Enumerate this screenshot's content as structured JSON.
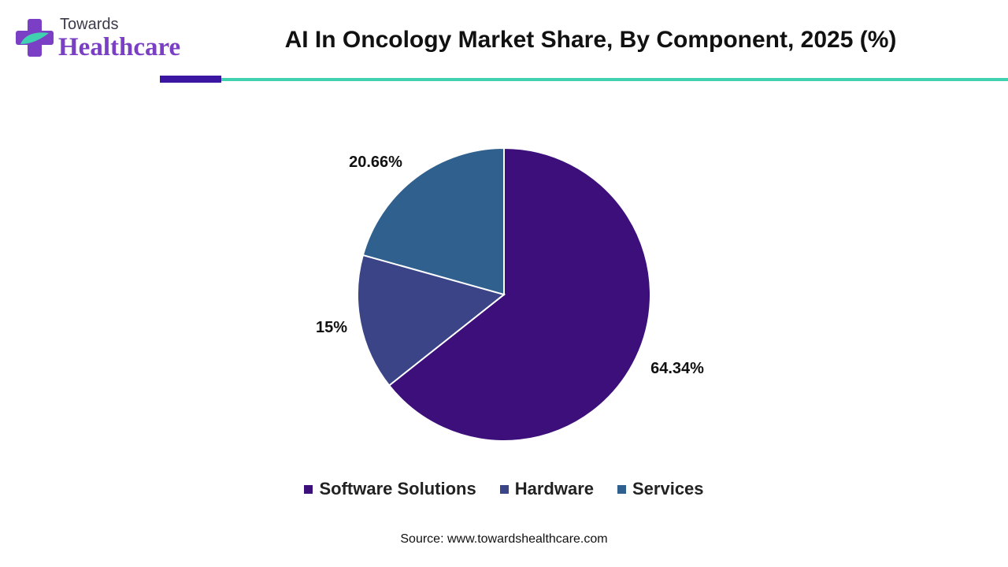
{
  "header": {
    "logo_line1": "Towards",
    "logo_line2": "Healthcare",
    "title": "AI In Oncology Market Share, By Component, 2025 (%)"
  },
  "colors": {
    "accent_purple": "#3b16a3",
    "accent_teal": "#3fd1b0",
    "logo_purple": "#7a3fc4"
  },
  "chart_data": {
    "type": "pie",
    "title": "AI In Oncology Market Share, By Component, 2025 (%)",
    "categories": [
      "Software Solutions",
      "Hardware",
      "Services"
    ],
    "values": [
      64.34,
      15,
      20.66
    ],
    "labels": [
      "64.34%",
      "15%",
      "20.66%"
    ],
    "colors": [
      "#3d0f7a",
      "#3a4486",
      "#30618e"
    ],
    "start_angle": "12 o'clock",
    "direction": "clockwise",
    "legend_position": "bottom"
  },
  "footer": {
    "source": "Source: www.towardshealthcare.com"
  }
}
